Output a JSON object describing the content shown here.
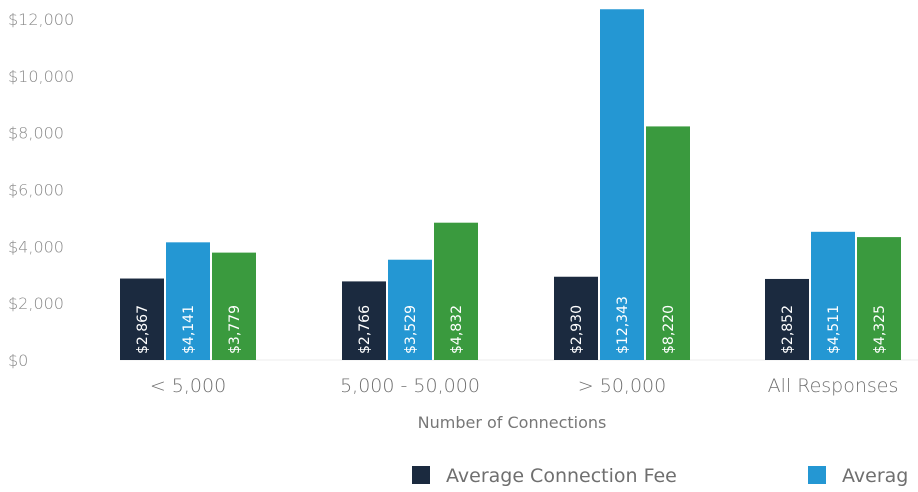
{
  "chart_data": {
    "type": "bar",
    "categories": [
      "< 5,000",
      "5,000 - 50,000",
      "> 50,000",
      "All Responses"
    ],
    "series": [
      {
        "name": "Average Connection Fee",
        "values": [
          2867,
          2766,
          2930,
          2852
        ],
        "labels": [
          "$2,867",
          "$2,766",
          "$2,930",
          "$2,852"
        ],
        "color": "#1b2a3f"
      },
      {
        "name": "Averag",
        "values": [
          4141,
          3529,
          12343,
          4511
        ],
        "labels": [
          "$4,141",
          "$3,529",
          "$12,343",
          "$4,511"
        ],
        "color": "#2497d3"
      },
      {
        "name": "",
        "values": [
          3779,
          4832,
          8220,
          4325
        ],
        "labels": [
          "$3,779",
          "$4,832",
          "$8,220",
          "$4,325"
        ],
        "color": "#3a9a3e"
      }
    ],
    "yticks": [
      "$0",
      "$2,000",
      "$4,000",
      "$6,000",
      "$8,000",
      "$10,000",
      "$12,000"
    ],
    "ylim": [
      0,
      12000
    ],
    "xlabel": "Number of Connections",
    "ylabel": "",
    "title": "",
    "grid": false,
    "legend": "bottom"
  }
}
